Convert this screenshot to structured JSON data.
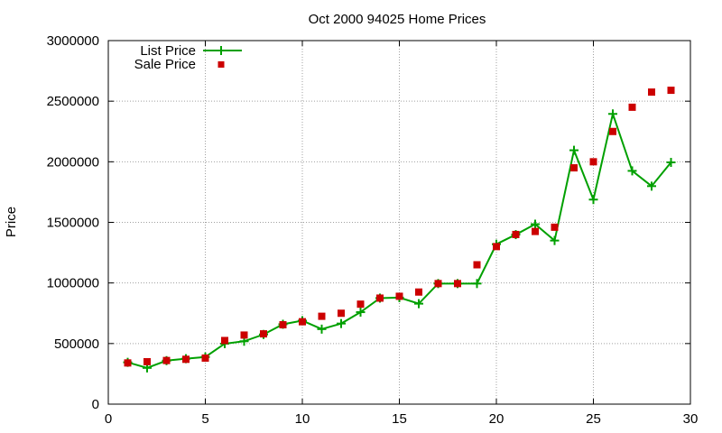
{
  "chart_data": {
    "type": "line",
    "title": "Oct 2000 94025 Home Prices",
    "xlabel": "",
    "ylabel": "Price",
    "xlim": [
      0,
      30
    ],
    "ylim": [
      0,
      3000000
    ],
    "x_ticks": [
      0,
      5,
      10,
      15,
      20,
      25,
      30
    ],
    "y_ticks": [
      0,
      500000,
      1000000,
      1500000,
      2000000,
      2500000,
      3000000
    ],
    "grid": true,
    "legend_position": "top-left",
    "series": [
      {
        "name": "List Price",
        "kind": "line-with-plus-markers",
        "color": "#00a000",
        "x": [
          1,
          2,
          3,
          4,
          5,
          6,
          7,
          8,
          9,
          10,
          11,
          12,
          13,
          14,
          15,
          16,
          17,
          18,
          19,
          20,
          21,
          22,
          23,
          24,
          25,
          26,
          27,
          28,
          29
        ],
        "y": [
          345000,
          299000,
          359000,
          375000,
          389000,
          499000,
          519000,
          575000,
          659000,
          689000,
          619000,
          665000,
          759000,
          875000,
          879000,
          829000,
          995000,
          995000,
          995000,
          1320000,
          1399000,
          1485000,
          1350000,
          2095000,
          1688000,
          2395000,
          1925000,
          1799000,
          1995000
        ]
      },
      {
        "name": "Sale Price",
        "kind": "points-square",
        "color": "#cc0000",
        "x": [
          1,
          2,
          3,
          4,
          5,
          6,
          7,
          8,
          9,
          10,
          11,
          12,
          13,
          14,
          15,
          16,
          17,
          18,
          19,
          20,
          21,
          22,
          23,
          24,
          25,
          26,
          27,
          28,
          29
        ],
        "y": [
          340000,
          350000,
          360000,
          370000,
          380000,
          525000,
          570000,
          580000,
          655000,
          680000,
          725000,
          750000,
          825000,
          875000,
          890000,
          925000,
          995000,
          995000,
          1150000,
          1300000,
          1400000,
          1425000,
          1460000,
          1950000,
          2000000,
          2250000,
          2450000,
          2575000,
          2590000
        ]
      }
    ]
  }
}
